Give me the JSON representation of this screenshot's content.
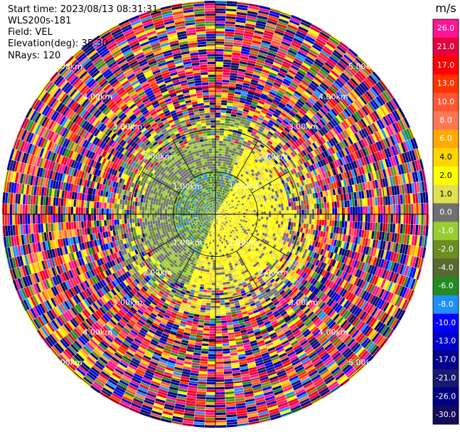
{
  "header": {
    "start_time": "Start time: 2023/08/13 08:31:31",
    "instrument": "WLS200s-181",
    "field": "Field: VEL",
    "elevation": "Elevation(deg): 35.30",
    "nrays": "NRays: 120"
  },
  "chart_data": {
    "type": "heatmap",
    "projection": "polar-ppi",
    "nrays": 120,
    "range_rings_km": [
      1.0,
      2.0,
      3.0,
      4.0,
      5.0
    ],
    "ring_labels": [
      "1.00km",
      "2.00km",
      "3.00km",
      "4.00km",
      "5.00km"
    ],
    "max_range_km": 5.0,
    "crosshair": true,
    "radial_spokes_deg": [
      30,
      60,
      120,
      150,
      210,
      240,
      300,
      330
    ],
    "colorbar": {
      "unit": "m/s",
      "placement": "right",
      "tick_labels": [
        "26.0",
        "21.0",
        "17.0",
        "13.0",
        "10.0",
        "8.0",
        "6.0",
        "4.0",
        "2.0",
        "1.0",
        "0.0",
        "-1.0",
        "-2.0",
        "-4.0",
        "-6.0",
        "-8.0",
        "-10.0",
        "-13.0",
        "-17.0",
        "-21.0",
        "-26.0",
        "-30.0"
      ],
      "colors": [
        "#ff1493",
        "#e8003c",
        "#ff0000",
        "#ff3300",
        "#ff5533",
        "#ff7755",
        "#ffaa00",
        "#ffd700",
        "#ffff00",
        "#e0e050",
        "#707070",
        "#9acd32",
        "#6b8e23",
        "#556b2f",
        "#228b22",
        "#1e90ff",
        "#0000ff",
        "#0000cd",
        "#00008b",
        "#191970",
        "#000080",
        "#120a5a"
      ]
    },
    "description_regions": {
      "near_field_km": [
        0,
        1.0
      ],
      "mid_field_km": [
        1.0,
        2.3
      ],
      "far_field_km": [
        2.3,
        5.0
      ]
    }
  }
}
